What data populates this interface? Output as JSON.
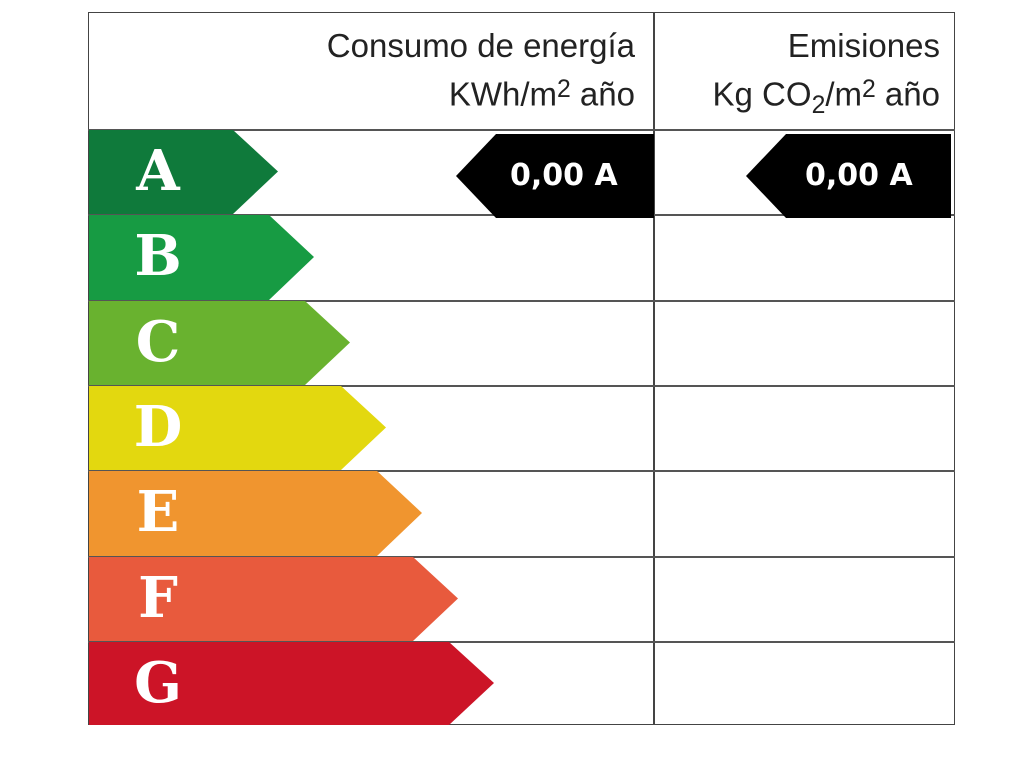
{
  "header": {
    "consumption_title": "Consumo de energía",
    "consumption_unit_prefix": "KWh/m",
    "consumption_unit_exp": "2",
    "consumption_unit_suffix": " año",
    "emissions_title": "Emisiones",
    "emissions_unit_prefix": "Kg CO",
    "emissions_unit_sub": "2",
    "emissions_unit_mid": "/m",
    "emissions_unit_exp": "2",
    "emissions_unit_suffix": " año"
  },
  "classes": [
    {
      "letter": "A",
      "color": "#0f7a3b"
    },
    {
      "letter": "B",
      "color": "#179b43"
    },
    {
      "letter": "C",
      "color": "#69b22f"
    },
    {
      "letter": "D",
      "color": "#e3d80f"
    },
    {
      "letter": "E",
      "color": "#f0952f"
    },
    {
      "letter": "F",
      "color": "#e85a3d"
    },
    {
      "letter": "G",
      "color": "#cc1427"
    }
  ],
  "consumption_rating": {
    "label": "0,00 A",
    "value": "0,00",
    "class": "A"
  },
  "emissions_rating": {
    "label": "0,00 A",
    "value": "0,00",
    "class": "A"
  },
  "marker_color": "#000000"
}
